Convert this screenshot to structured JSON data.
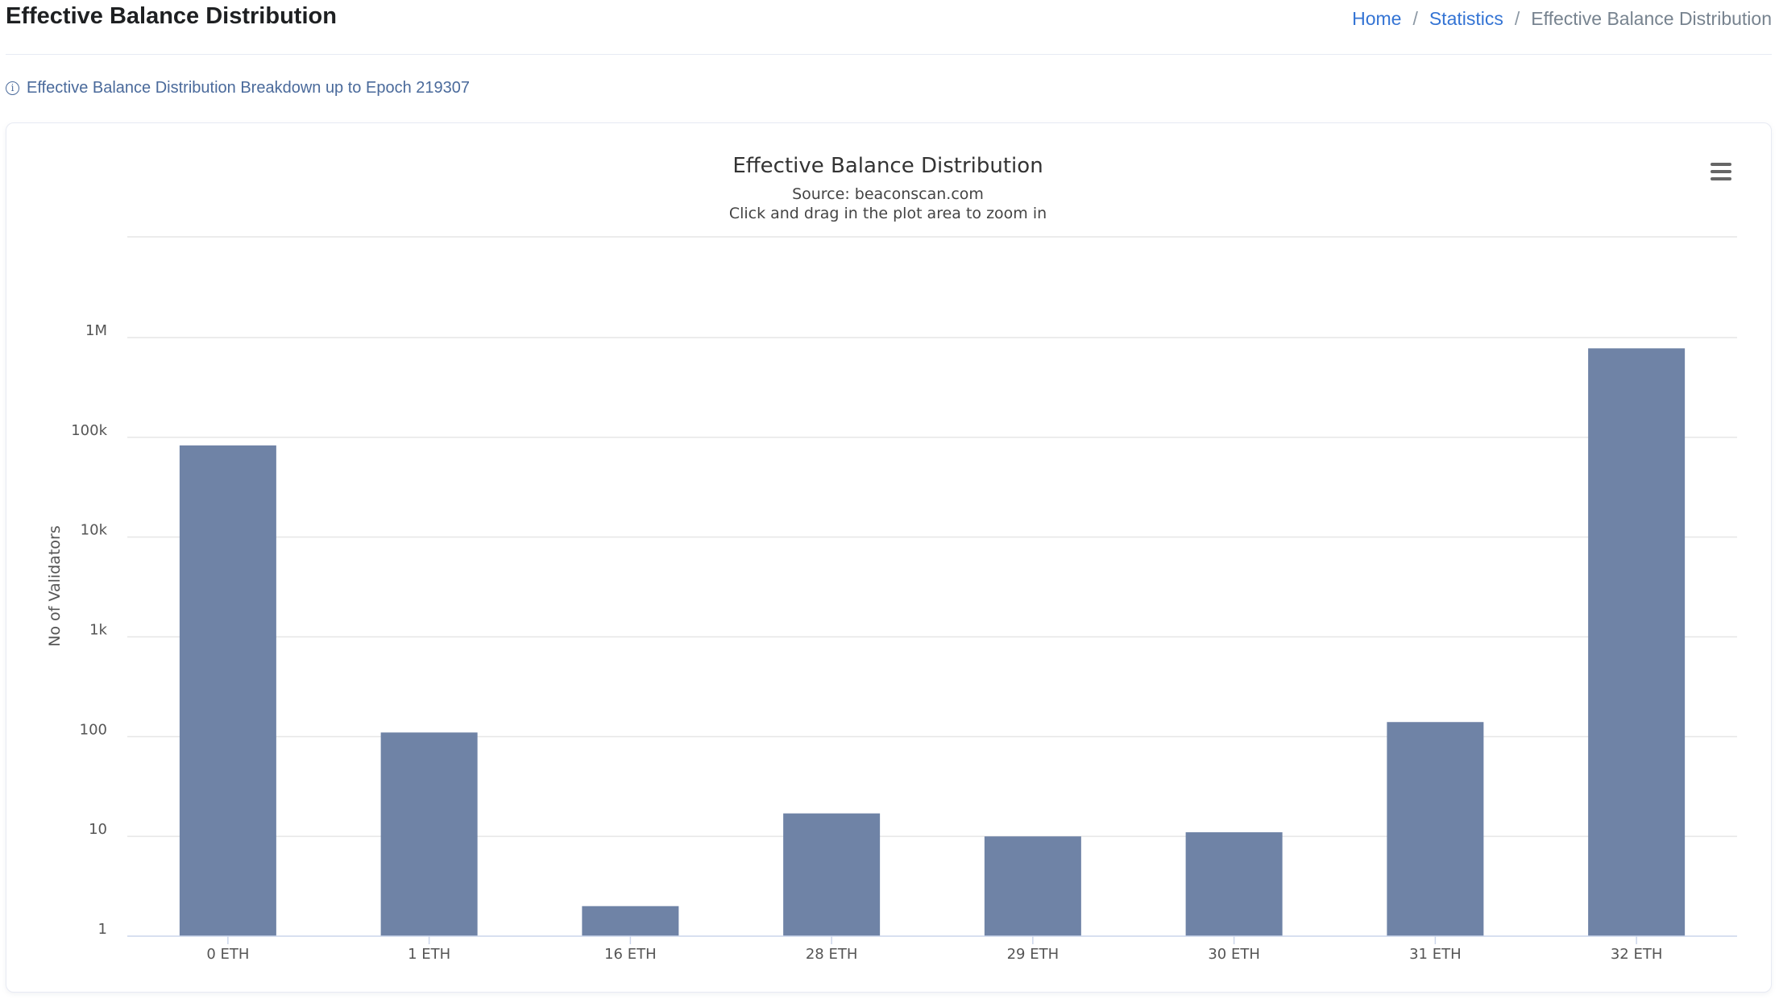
{
  "header": {
    "title": "Effective Balance Distribution",
    "breadcrumb": {
      "home": "Home",
      "statistics": "Statistics",
      "current": "Effective Balance Distribution",
      "separator": "/"
    }
  },
  "info": {
    "icon": "info-circle-icon",
    "text": "Effective Balance Distribution Breakdown up to Epoch 219307"
  },
  "colors": {
    "bar": "#6f83a6",
    "link": "#3474d4"
  },
  "chart_data": {
    "type": "bar",
    "title": "Effective Balance Distribution",
    "subtitle": "Source: beaconscan.com",
    "subtitle2": "Click and drag in the plot area to zoom in",
    "xlabel": "",
    "ylabel": "No of Validators",
    "yscale": "log",
    "ylim": [
      1,
      1000000
    ],
    "yticks": [
      {
        "value": 1,
        "label": "1"
      },
      {
        "value": 10,
        "label": "10"
      },
      {
        "value": 100,
        "label": "100"
      },
      {
        "value": 1000,
        "label": "1k"
      },
      {
        "value": 10000,
        "label": "10k"
      },
      {
        "value": 100000,
        "label": "100k"
      },
      {
        "value": 1000000,
        "label": "1M"
      }
    ],
    "categories": [
      "0 ETH",
      "1 ETH",
      "16 ETH",
      "28 ETH",
      "29 ETH",
      "30 ETH",
      "31 ETH",
      "32 ETH"
    ],
    "values": [
      83000,
      110,
      2,
      17,
      10,
      11,
      140,
      780000
    ],
    "grid": true,
    "legend": "none",
    "menu_icon": "hamburger-menu-icon"
  }
}
